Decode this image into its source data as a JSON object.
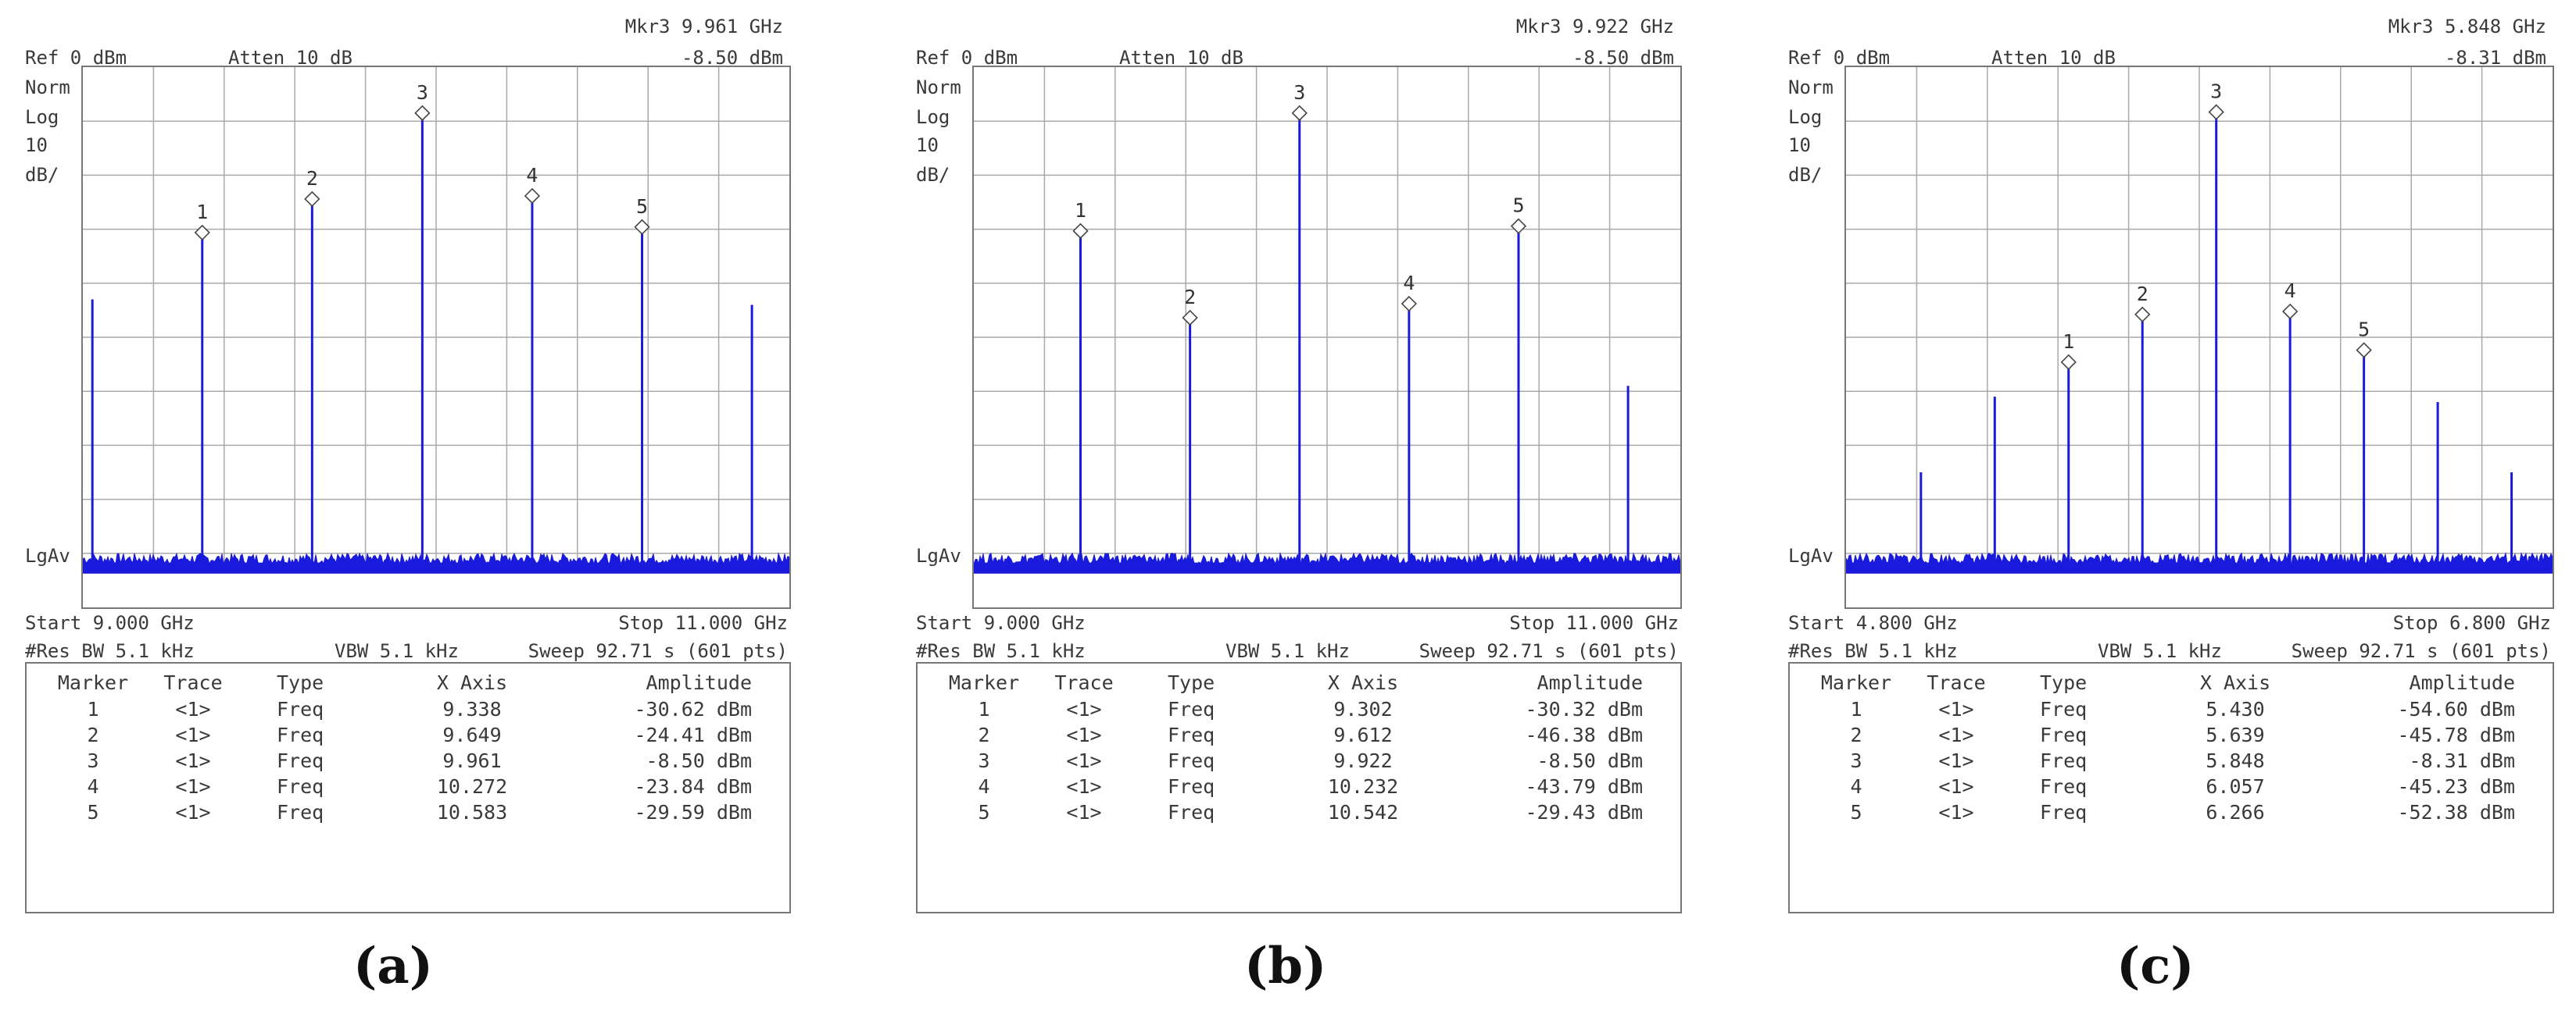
{
  "colors": {
    "trace": "#1a1adc",
    "grid": "#a9a9a9",
    "text": "#3a3a3a"
  },
  "panels": [
    {
      "caption": "(a)",
      "mkr_line": "Mkr3 9.961 GHz",
      "ref": "Ref 0 dBm",
      "atten": "Atten 10 dB",
      "mkr_amp": "-8.50 dBm",
      "left_labels": [
        "Norm",
        "Log",
        "10",
        "dB/"
      ],
      "lgav": "LgAv",
      "start": "Start 9.000 GHz",
      "stop": "Stop 11.000 GHz",
      "rbw": "#Res BW 5.1 kHz",
      "vbw": "VBW 5.1 kHz",
      "sweep": "Sweep 92.71 s (601 pts)",
      "table_headers": [
        "Marker",
        "Trace",
        "Type",
        "X Axis",
        "Amplitude"
      ],
      "table_rows": [
        [
          "1",
          "<1>",
          "Freq",
          "9.338",
          "-30.62 dBm"
        ],
        [
          "2",
          "<1>",
          "Freq",
          "9.649",
          "-24.41 dBm"
        ],
        [
          "3",
          "<1>",
          "Freq",
          "9.961",
          "-8.50 dBm"
        ],
        [
          "4",
          "<1>",
          "Freq",
          "10.272",
          "-23.84 dBm"
        ],
        [
          "5",
          "<1>",
          "Freq",
          "10.583",
          "-29.59 dBm"
        ]
      ]
    },
    {
      "caption": "(b)",
      "mkr_line": "Mkr3 9.922 GHz",
      "ref": "Ref 0 dBm",
      "atten": "Atten 10 dB",
      "mkr_amp": "-8.50 dBm",
      "left_labels": [
        "Norm",
        "Log",
        "10",
        "dB/"
      ],
      "lgav": "LgAv",
      "start": "Start 9.000 GHz",
      "stop": "Stop 11.000 GHz",
      "rbw": "#Res BW 5.1 kHz",
      "vbw": "VBW 5.1 kHz",
      "sweep": "Sweep 92.71 s (601 pts)",
      "table_headers": [
        "Marker",
        "Trace",
        "Type",
        "X Axis",
        "Amplitude"
      ],
      "table_rows": [
        [
          "1",
          "<1>",
          "Freq",
          "9.302",
          "-30.32 dBm"
        ],
        [
          "2",
          "<1>",
          "Freq",
          "9.612",
          "-46.38 dBm"
        ],
        [
          "3",
          "<1>",
          "Freq",
          "9.922",
          "-8.50 dBm"
        ],
        [
          "4",
          "<1>",
          "Freq",
          "10.232",
          "-43.79 dBm"
        ],
        [
          "5",
          "<1>",
          "Freq",
          "10.542",
          "-29.43 dBm"
        ]
      ]
    },
    {
      "caption": "(c)",
      "mkr_line": "Mkr3 5.848 GHz",
      "ref": "Ref 0 dBm",
      "atten": "Atten 10 dB",
      "mkr_amp": "-8.31 dBm",
      "left_labels": [
        "Norm",
        "Log",
        "10",
        "dB/"
      ],
      "lgav": "LgAv",
      "start": "Start 4.800 GHz",
      "stop": "Stop 6.800 GHz",
      "rbw": "#Res BW 5.1 kHz",
      "vbw": "VBW 5.1 kHz",
      "sweep": "Sweep 92.71 s (601 pts)",
      "table_headers": [
        "Marker",
        "Trace",
        "Type",
        "X Axis",
        "Amplitude"
      ],
      "table_rows": [
        [
          "1",
          "<1>",
          "Freq",
          "5.430",
          "-54.60 dBm"
        ],
        [
          "2",
          "<1>",
          "Freq",
          "5.639",
          "-45.78 dBm"
        ],
        [
          "3",
          "<1>",
          "Freq",
          "5.848",
          "-8.31 dBm"
        ],
        [
          "4",
          "<1>",
          "Freq",
          "6.057",
          "-45.23 dBm"
        ],
        [
          "5",
          "<1>",
          "Freq",
          "6.266",
          "-52.38 dBm"
        ]
      ]
    }
  ],
  "chart_data": [
    {
      "type": "line",
      "xlim": [
        9.0,
        11.0
      ],
      "ylim": [
        -100,
        0
      ],
      "grid": true,
      "noise_floor_dbm": -92,
      "spectral_lines": [
        {
          "x": 9.027,
          "y": -43
        },
        {
          "x": 9.338,
          "y": -30.62,
          "marker": "1"
        },
        {
          "x": 9.649,
          "y": -24.41,
          "marker": "2"
        },
        {
          "x": 9.961,
          "y": -8.5,
          "marker": "3"
        },
        {
          "x": 10.272,
          "y": -23.84,
          "marker": "4"
        },
        {
          "x": 10.583,
          "y": -29.59,
          "marker": "5"
        },
        {
          "x": 10.894,
          "y": -44
        }
      ]
    },
    {
      "type": "line",
      "xlim": [
        9.0,
        11.0
      ],
      "ylim": [
        -100,
        0
      ],
      "grid": true,
      "noise_floor_dbm": -92,
      "spectral_lines": [
        {
          "x": 9.302,
          "y": -30.32,
          "marker": "1"
        },
        {
          "x": 9.612,
          "y": -46.38,
          "marker": "2"
        },
        {
          "x": 9.922,
          "y": -8.5,
          "marker": "3"
        },
        {
          "x": 10.232,
          "y": -43.79,
          "marker": "4"
        },
        {
          "x": 10.542,
          "y": -29.43,
          "marker": "5"
        },
        {
          "x": 10.852,
          "y": -59
        }
      ]
    },
    {
      "type": "line",
      "xlim": [
        4.8,
        6.8
      ],
      "ylim": [
        -100,
        0
      ],
      "grid": true,
      "noise_floor_dbm": -92,
      "spectral_lines": [
        {
          "x": 5.012,
          "y": -75
        },
        {
          "x": 5.221,
          "y": -61
        },
        {
          "x": 5.43,
          "y": -54.6,
          "marker": "1"
        },
        {
          "x": 5.639,
          "y": -45.78,
          "marker": "2"
        },
        {
          "x": 5.848,
          "y": -8.31,
          "marker": "3"
        },
        {
          "x": 6.057,
          "y": -45.23,
          "marker": "4"
        },
        {
          "x": 6.266,
          "y": -52.38,
          "marker": "5"
        },
        {
          "x": 6.475,
          "y": -62
        },
        {
          "x": 6.684,
          "y": -75
        }
      ]
    }
  ]
}
